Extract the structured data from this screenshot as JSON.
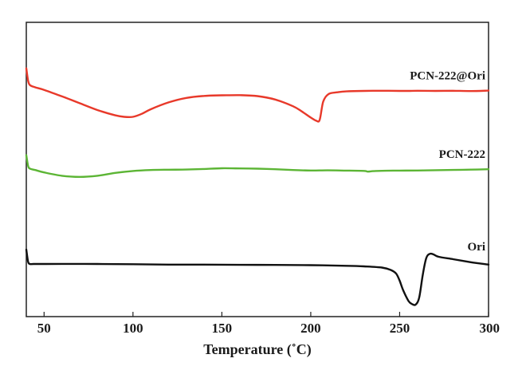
{
  "chart_data": {
    "type": "line",
    "title": "",
    "xlabel": "Temperature (˚C)",
    "ylabel": "",
    "xlim": [
      40,
      300
    ],
    "ylim": [
      0,
      100
    ],
    "x_ticks": [
      50,
      100,
      150,
      200,
      250,
      300
    ],
    "x_tick_labels": [
      "50",
      "100",
      "150",
      "200",
      "250",
      "300"
    ],
    "grid": false,
    "legend": "labels at right end of each curve",
    "series": [
      {
        "name": "PCN-222@Ori",
        "color": "#e8392a",
        "x": [
          40,
          41,
          42,
          45,
          50,
          60,
          70,
          80,
          90,
          95,
          100,
          105,
          110,
          120,
          130,
          140,
          150,
          160,
          170,
          180,
          190,
          195,
          200,
          203,
          205,
          207,
          210,
          215,
          220,
          230,
          240,
          250,
          255,
          260,
          270,
          280,
          290,
          300
        ],
        "y": [
          97.0,
          89.0,
          86.0,
          84.5,
          82.8,
          78.5,
          74.0,
          69.5,
          66.0,
          65.0,
          65.0,
          67.0,
          70.0,
          74.5,
          77.5,
          78.8,
          79.2,
          79.3,
          78.7,
          76.4,
          72.0,
          68.5,
          64.5,
          62.5,
          63.0,
          75.0,
          80.0,
          81.2,
          81.8,
          82.1,
          82.2,
          82.1,
          82.1,
          82.2,
          82.1,
          82.2,
          82.0,
          82.3
        ]
      },
      {
        "name": "PCN-222",
        "color": "#5cb535",
        "x": [
          40,
          41,
          42,
          45,
          50,
          60,
          70,
          80,
          90,
          100,
          110,
          120,
          130,
          140,
          150,
          160,
          170,
          180,
          190,
          200,
          210,
          220,
          230,
          232,
          235,
          240,
          250,
          260,
          270,
          280,
          290,
          300
        ],
        "y": [
          67.0,
          56.0,
          53.0,
          51.5,
          49.0,
          45.5,
          44.3,
          45.5,
          48.5,
          50.5,
          51.5,
          51.8,
          52.0,
          52.6,
          53.3,
          53.2,
          52.9,
          52.3,
          51.5,
          51.0,
          51.2,
          50.9,
          50.6,
          49.8,
          50.3,
          50.7,
          50.9,
          51.0,
          51.3,
          51.6,
          51.9,
          52.3
        ]
      },
      {
        "name": "Ori",
        "color": "#111111",
        "x": [
          40,
          41,
          42,
          44,
          50,
          60,
          80,
          100,
          120,
          140,
          160,
          180,
          200,
          220,
          230,
          240,
          245,
          248,
          250,
          252,
          255,
          257,
          259,
          261,
          263,
          265,
          267,
          269,
          272,
          280,
          290,
          300
        ],
        "y": [
          46.0,
          36.0,
          34.0,
          34.0,
          34.0,
          34.1,
          34.0,
          33.8,
          33.5,
          33.5,
          33.3,
          33.2,
          33.0,
          32.5,
          32.0,
          31.0,
          29.0,
          26.0,
          20.0,
          12.0,
          3.0,
          0.5,
          0.0,
          6.0,
          25.0,
          39.0,
          42.5,
          42.0,
          40.0,
          38.0,
          35.5,
          33.5
        ]
      }
    ]
  }
}
